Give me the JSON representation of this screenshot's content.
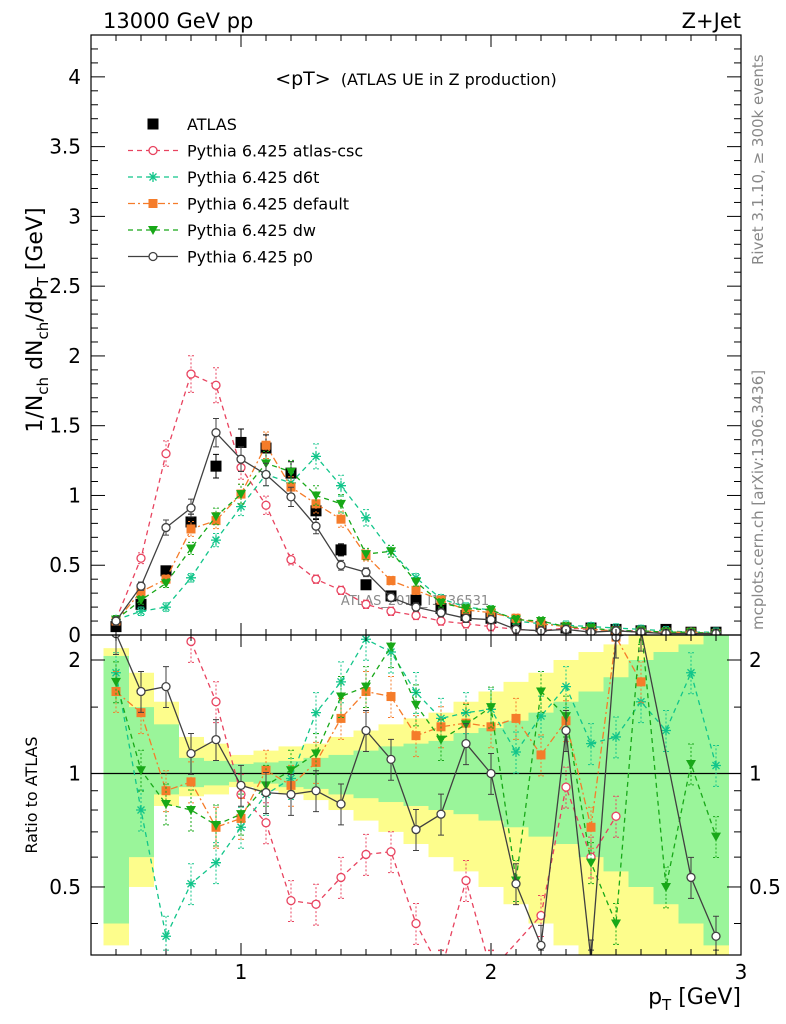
{
  "header": {
    "left": "13000 GeV pp",
    "right": "Z+Jet"
  },
  "side_text": {
    "rivet": "Rivet 3.1.10, ≥ 300k events",
    "mcplots": "mcplots.cern.ch [arXiv:1306.3436]"
  },
  "watermark": "ATLAS_2019_I1736531",
  "colors": {
    "atlas": "#000000",
    "atlas_csc": "#e8435f",
    "d6t": "#12c58a",
    "default": "#f57c2a",
    "dw": "#18a818",
    "p0": "#404040",
    "band_yellow": "#fdfd8c",
    "band_green": "#9af59a"
  },
  "chart_data": [
    {
      "type": "scatter",
      "title": "<pT>",
      "subtitle": "(ATLAS UE in Z production)",
      "ylabel": "1/N_ch dN_ch/dp_T [GeV]",
      "xlabel": "",
      "xlim": [
        0.4,
        3.0
      ],
      "ylim": [
        0,
        4.3
      ],
      "yticks": [
        0,
        0.5,
        1,
        1.5,
        2,
        2.5,
        3,
        3.5,
        4
      ],
      "yticklabels": [
        "0",
        "0.5",
        "1",
        "1.5",
        "2",
        "2.5",
        "3",
        "3.5",
        "4"
      ],
      "legend_position": "top-left",
      "x": [
        0.5,
        0.6,
        0.7,
        0.8,
        0.9,
        1.0,
        1.1,
        1.2,
        1.3,
        1.4,
        1.5,
        1.6,
        1.7,
        1.8,
        1.9,
        2.0,
        2.1,
        2.2,
        2.3,
        2.4,
        2.5,
        2.6,
        2.7,
        2.8,
        2.9
      ],
      "series": [
        {
          "name": "ATLAS",
          "key": "atlas",
          "marker": "square",
          "line": "none",
          "values": [
            0.06,
            0.22,
            0.46,
            0.81,
            1.21,
            1.38,
            1.34,
            1.16,
            0.89,
            0.61,
            0.36,
            0.28,
            0.25,
            0.19,
            0.14,
            0.12,
            0.08,
            0.06,
            0.05,
            0.05,
            0.04,
            0.03,
            0.04,
            0.02,
            0.02
          ]
        },
        {
          "name": "Pythia 6.425 atlas-csc",
          "key": "atlas_csc",
          "marker": "open-circle",
          "line": "dashed",
          "values": [
            0.11,
            0.55,
            1.3,
            1.87,
            1.79,
            1.2,
            0.93,
            0.54,
            0.4,
            0.32,
            0.22,
            0.17,
            0.14,
            0.1,
            0.08,
            0.06,
            0.04,
            0.03,
            0.05,
            0.04,
            0.03,
            0.03,
            0.02,
            0.02,
            0.01
          ]
        },
        {
          "name": "Pythia 6.425 d6t",
          "key": "d6t",
          "marker": "star",
          "line": "dashed",
          "values": [
            0.11,
            0.17,
            0.2,
            0.41,
            0.68,
            0.92,
            1.15,
            1.09,
            1.28,
            1.07,
            0.84,
            0.6,
            0.41,
            0.26,
            0.2,
            0.18,
            0.1,
            0.08,
            0.07,
            0.06,
            0.05,
            0.04,
            0.03,
            0.02,
            0.02
          ]
        },
        {
          "name": "Pythia 6.425 default",
          "key": "default",
          "marker": "filled-square",
          "line": "dashdot",
          "values": [
            0.1,
            0.31,
            0.4,
            0.76,
            0.82,
            1.01,
            1.36,
            1.06,
            0.94,
            0.83,
            0.57,
            0.39,
            0.32,
            0.25,
            0.18,
            0.16,
            0.12,
            0.08,
            0.06,
            0.04,
            0.03,
            0.02,
            0.02,
            0.02,
            0.01
          ]
        },
        {
          "name": "Pythia 6.425 dw",
          "key": "dw",
          "marker": "triangle-down",
          "line": "dashed",
          "values": [
            0.11,
            0.25,
            0.37,
            0.62,
            0.85,
            1.01,
            1.23,
            1.17,
            1.0,
            0.94,
            0.58,
            0.6,
            0.38,
            0.23,
            0.19,
            0.18,
            0.11,
            0.1,
            0.06,
            0.05,
            0.03,
            0.03,
            0.02,
            0.02,
            0.01
          ]
        },
        {
          "name": "Pythia 6.425 p0",
          "key": "p0",
          "marker": "open-circle",
          "line": "solid",
          "values": [
            0.1,
            0.35,
            0.77,
            0.91,
            1.45,
            1.26,
            1.15,
            0.99,
            0.78,
            0.5,
            0.45,
            0.27,
            0.2,
            0.16,
            0.12,
            0.11,
            0.04,
            0.03,
            0.04,
            0.02,
            0.03,
            0.02,
            0.01,
            0.01,
            0.01
          ]
        }
      ]
    },
    {
      "type": "line",
      "title": "",
      "ylabel": "Ratio to ATLAS",
      "xlabel": "p_T [GeV]",
      "xlim": [
        0.4,
        3.0
      ],
      "ylim": [
        0.33,
        2.33
      ],
      "yticks": [
        0.5,
        1,
        2
      ],
      "yticklabels": [
        "0.5",
        "1",
        "2"
      ],
      "xticks": [
        1,
        2,
        3
      ],
      "xticklabels": [
        "1",
        "2",
        "3"
      ],
      "reference_line": 1,
      "band_yellow": [
        [
          0.45,
          0.55,
          0.35,
          2.15
        ],
        [
          0.55,
          0.65,
          0.5,
          1.85
        ],
        [
          0.65,
          0.75,
          0.82,
          1.55
        ],
        [
          0.75,
          0.85,
          0.87,
          1.25
        ],
        [
          0.85,
          0.95,
          0.88,
          1.2
        ],
        [
          0.95,
          1.05,
          0.92,
          1.12
        ],
        [
          1.05,
          1.15,
          0.9,
          1.15
        ],
        [
          1.15,
          1.25,
          0.88,
          1.18
        ],
        [
          1.25,
          1.35,
          0.85,
          1.2
        ],
        [
          1.35,
          1.45,
          0.8,
          1.25
        ],
        [
          1.45,
          1.55,
          0.75,
          1.3
        ],
        [
          1.55,
          1.65,
          0.7,
          1.35
        ],
        [
          1.65,
          1.75,
          0.65,
          1.4
        ],
        [
          1.75,
          1.85,
          0.6,
          1.45
        ],
        [
          1.85,
          1.95,
          0.55,
          1.55
        ],
        [
          1.95,
          2.05,
          0.5,
          1.65
        ],
        [
          2.05,
          2.15,
          0.45,
          1.75
        ],
        [
          2.15,
          2.25,
          0.4,
          1.85
        ],
        [
          2.25,
          2.35,
          0.35,
          2.0
        ],
        [
          2.35,
          2.45,
          0.33,
          2.1
        ],
        [
          2.45,
          2.55,
          0.33,
          2.2
        ],
        [
          2.55,
          2.65,
          0.33,
          2.33
        ],
        [
          2.65,
          2.75,
          0.33,
          2.33
        ],
        [
          2.75,
          2.85,
          0.33,
          2.33
        ],
        [
          2.85,
          2.95,
          0.33,
          2.33
        ]
      ],
      "band_green": [
        [
          0.45,
          0.55,
          0.4,
          2.05
        ],
        [
          0.55,
          0.65,
          0.6,
          1.5
        ],
        [
          0.65,
          0.75,
          0.88,
          1.35
        ],
        [
          0.75,
          0.85,
          0.92,
          1.1
        ],
        [
          0.85,
          0.95,
          0.93,
          1.08
        ],
        [
          0.95,
          1.05,
          0.95,
          1.06
        ],
        [
          1.05,
          1.15,
          0.94,
          1.07
        ],
        [
          1.15,
          1.25,
          0.92,
          1.08
        ],
        [
          1.25,
          1.35,
          0.91,
          1.1
        ],
        [
          1.35,
          1.45,
          0.88,
          1.12
        ],
        [
          1.45,
          1.55,
          0.86,
          1.15
        ],
        [
          1.55,
          1.65,
          0.84,
          1.18
        ],
        [
          1.65,
          1.75,
          0.82,
          1.2
        ],
        [
          1.75,
          1.85,
          0.8,
          1.22
        ],
        [
          1.85,
          1.95,
          0.78,
          1.28
        ],
        [
          1.95,
          2.05,
          0.75,
          1.32
        ],
        [
          2.05,
          2.15,
          0.72,
          1.38
        ],
        [
          2.15,
          2.25,
          0.68,
          1.45
        ],
        [
          2.25,
          2.35,
          0.65,
          1.55
        ],
        [
          2.35,
          2.45,
          0.6,
          1.65
        ],
        [
          2.45,
          2.55,
          0.55,
          1.8
        ],
        [
          2.55,
          2.65,
          0.5,
          2.0
        ],
        [
          2.65,
          2.75,
          0.45,
          2.1
        ],
        [
          2.75,
          2.85,
          0.4,
          2.2
        ],
        [
          2.85,
          2.95,
          0.35,
          2.33
        ]
      ],
      "x": [
        0.5,
        0.6,
        0.7,
        0.8,
        0.9,
        1.0,
        1.1,
        1.2,
        1.3,
        1.4,
        1.5,
        1.6,
        1.7,
        1.8,
        1.9,
        2.0,
        2.1,
        2.2,
        2.3,
        2.4,
        2.5,
        2.6,
        2.7,
        2.8,
        2.9
      ],
      "series": [
        {
          "name": "Pythia 6.425 atlas-csc",
          "key": "atlas_csc",
          "marker": "open-circle",
          "line": "dashed",
          "values": [
            null,
            null,
            null,
            2.24,
            1.55,
            0.88,
            0.74,
            0.46,
            0.45,
            0.53,
            0.61,
            0.62,
            0.4,
            0.3,
            0.52,
            0.3,
            null,
            0.42,
            0.92,
            0.6,
            0.77,
            null,
            null,
            null,
            null
          ]
        },
        {
          "name": "Pythia 6.425 d6t",
          "key": "d6t",
          "marker": "star",
          "line": "dashed",
          "values": [
            1.85,
            0.8,
            0.37,
            0.51,
            0.58,
            0.72,
            0.88,
            0.97,
            1.45,
            1.75,
            2.27,
            2.1,
            1.64,
            1.4,
            1.45,
            1.48,
            1.14,
            1.42,
            1.7,
            1.2,
            1.25,
            1.55,
            1.3,
            1.85,
            1.05
          ]
        },
        {
          "name": "Pythia 6.425 default",
          "key": "default",
          "marker": "filled-square",
          "line": "dashdot",
          "values": [
            1.65,
            1.45,
            0.9,
            0.95,
            0.72,
            0.76,
            1.02,
            0.93,
            1.07,
            1.4,
            1.65,
            1.6,
            1.26,
            1.33,
            1.36,
            1.33,
            1.4,
            1.12,
            1.38,
            0.72,
            2.3,
            1.75,
            null,
            null,
            null
          ]
        },
        {
          "name": "Pythia 6.425 dw",
          "key": "dw",
          "marker": "triangle-down",
          "line": "dashed",
          "values": [
            1.75,
            1.02,
            0.83,
            0.8,
            0.73,
            0.78,
            0.93,
            1.02,
            1.13,
            1.6,
            1.7,
            2.17,
            1.52,
            1.23,
            1.35,
            1.5,
            0.52,
            1.65,
            1.42,
            0.58,
            0.4,
            2.5,
            0.5,
            1.06,
            0.68
          ]
        },
        {
          "name": "Pythia 6.425 p0",
          "key": "p0",
          "marker": "open-circle",
          "line": "solid",
          "values": [
            2.35,
            1.65,
            1.7,
            1.13,
            1.23,
            0.93,
            0.89,
            0.88,
            0.9,
            0.83,
            1.3,
            1.09,
            0.71,
            0.78,
            1.2,
            1.0,
            0.51,
            0.35,
            1.3,
            0.32,
            2.3,
            2.4,
            null,
            0.53,
            0.37
          ]
        }
      ]
    }
  ]
}
